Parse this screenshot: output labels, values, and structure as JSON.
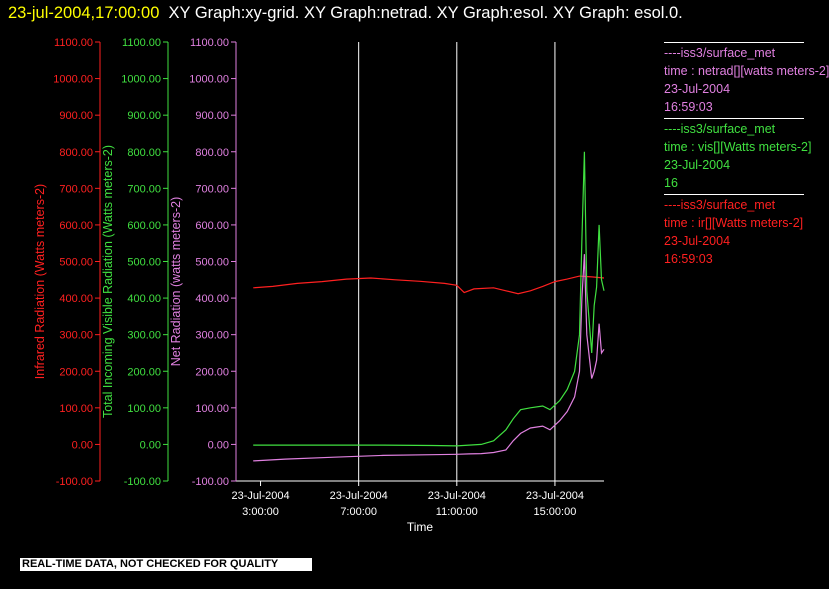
{
  "header": {
    "timestamp": "23-jul-2004,17:00:00",
    "title_rest": "XY Graph:xy-grid.  XY Graph:netrad.  XY Graph:esol.  XY Graph: esol.0."
  },
  "footer": {
    "disclaimer": "REAL-TIME DATA, NOT CHECKED FOR QUALITY"
  },
  "colors": {
    "background": "#000000",
    "netrad": "#e080e0",
    "vis": "#40e040",
    "ir": "#ff2020",
    "grid": "#ffffff"
  },
  "legend": [
    {
      "line1": "----iss3/surface_met",
      "line2": "time : netrad[][watts meters-2]",
      "line3": "23-Jul-2004",
      "line4": "16:59:03",
      "color": "#e080e0"
    },
    {
      "line1": "----iss3/surface_met",
      "line2": "time : vis[][Watts meters-2]",
      "line3": "23-Jul-2004",
      "line4": "16",
      "color": "#40e040"
    },
    {
      "line1": "----iss3/surface_met",
      "line2": "time : ir[][Watts meters-2]",
      "line3": "23-Jul-2004",
      "line4": "16:59:03",
      "color": "#ff2020"
    }
  ],
  "chart_data": {
    "type": "line",
    "xlabel": "Time",
    "x_ticks": [
      {
        "hour": 3,
        "date": "23-Jul-2004",
        "time": "3:00:00"
      },
      {
        "hour": 7,
        "date": "23-Jul-2004",
        "time": "7:00:00"
      },
      {
        "hour": 11,
        "date": "23-Jul-2004",
        "time": "11:00:00"
      },
      {
        "hour": 15,
        "date": "23-Jul-2004",
        "time": "15:00:00"
      }
    ],
    "xlim": [
      2.0,
      17.0
    ],
    "vertical_grid_hours": [
      7,
      11,
      15
    ],
    "y_axes": [
      {
        "label": "Infrared Radiation (Watts meters-2)",
        "color": "#ff2020",
        "ylim": [
          -100,
          1100
        ],
        "ticks": [
          "-100.00",
          "0.00",
          "100.00",
          "200.00",
          "300.00",
          "400.00",
          "500.00",
          "600.00",
          "700.00",
          "800.00",
          "900.00",
          "1000.00",
          "1100.00"
        ]
      },
      {
        "label": "Total Incoming Visible Radiation (Watts meters-2)",
        "color": "#40e040",
        "ylim": [
          -100,
          1100
        ],
        "ticks": [
          "-100.00",
          "0.00",
          "100.00",
          "200.00",
          "300.00",
          "400.00",
          "500.00",
          "600.00",
          "700.00",
          "800.00",
          "900.00",
          "1000.00",
          "1100.00"
        ]
      },
      {
        "label": "Net Radiation (watts meters-2)",
        "color": "#e080e0",
        "ylim": [
          -100,
          1100
        ],
        "ticks": [
          "-100.00",
          "0.00",
          "100.00",
          "200.00",
          "300.00",
          "400.00",
          "500.00",
          "600.00",
          "700.00",
          "800.00",
          "900.00",
          "1000.00",
          "1100.00"
        ]
      }
    ],
    "series": [
      {
        "name": "ir",
        "color": "#ff2020",
        "x": [
          2.7,
          3.5,
          4.5,
          5.5,
          6.5,
          7.5,
          8.5,
          9.5,
          10.5,
          11.0,
          11.3,
          11.7,
          12.5,
          13.0,
          13.5,
          14.0,
          14.5,
          15.0,
          15.5,
          16.0,
          16.5,
          17.0
        ],
        "y": [
          428,
          432,
          440,
          445,
          452,
          455,
          450,
          446,
          440,
          435,
          415,
          425,
          428,
          420,
          412,
          420,
          432,
          445,
          452,
          460,
          458,
          455
        ]
      },
      {
        "name": "vis",
        "color": "#40e040",
        "x": [
          2.7,
          4.0,
          6.0,
          8.0,
          10.0,
          11.0,
          11.5,
          12.0,
          12.5,
          13.0,
          13.3,
          13.6,
          14.0,
          14.5,
          14.8,
          15.2,
          15.5,
          15.8,
          16.0,
          16.1,
          16.2,
          16.3,
          16.5,
          16.6,
          16.7,
          16.8,
          16.9,
          17.0
        ],
        "y": [
          -2,
          -2,
          -2,
          -2,
          -3,
          -4,
          -2,
          0,
          10,
          40,
          70,
          95,
          100,
          105,
          95,
          120,
          150,
          200,
          300,
          560,
          800,
          420,
          250,
          380,
          430,
          600,
          450,
          420
        ]
      },
      {
        "name": "netrad",
        "color": "#e080e0",
        "x": [
          2.7,
          4.0,
          6.0,
          8.0,
          10.0,
          11.0,
          11.5,
          12.0,
          12.5,
          13.0,
          13.3,
          13.6,
          14.0,
          14.5,
          14.8,
          15.2,
          15.5,
          15.8,
          16.0,
          16.1,
          16.2,
          16.3,
          16.5,
          16.6,
          16.7,
          16.8,
          16.9,
          17.0
        ],
        "y": [
          -45,
          -40,
          -35,
          -30,
          -28,
          -27,
          -26,
          -25,
          -22,
          -15,
          10,
          30,
          45,
          50,
          40,
          65,
          90,
          130,
          200,
          400,
          520,
          300,
          180,
          200,
          230,
          330,
          250,
          260
        ]
      }
    ]
  }
}
